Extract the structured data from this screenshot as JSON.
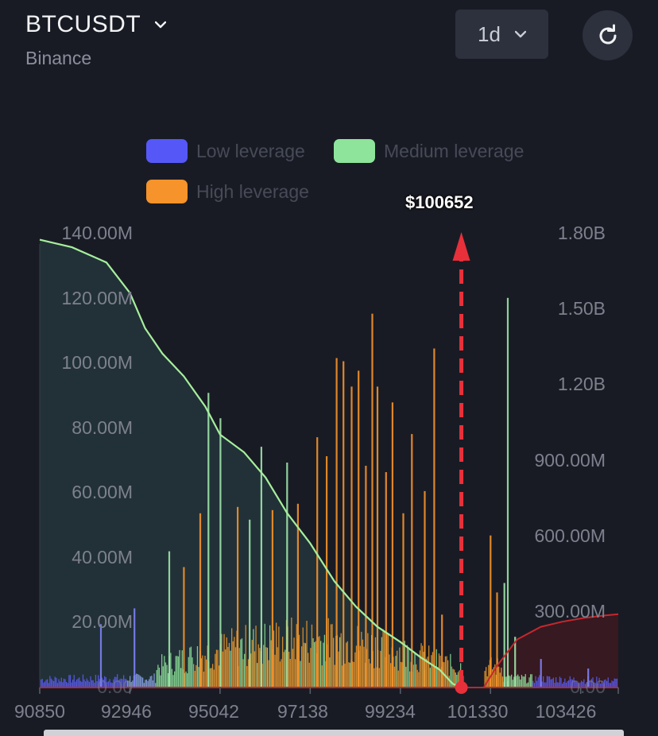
{
  "header": {
    "symbol": "BTCUSDT",
    "exchange": "Binance",
    "interval": "1d"
  },
  "icons": {
    "symbol_dropdown": "chevron-down-icon",
    "interval_dropdown": "chevron-down-icon",
    "refresh": "refresh-icon"
  },
  "colors": {
    "background": "#191b24",
    "low_leverage": "#5558f6",
    "medium_leverage": "#8ee49a",
    "high_leverage": "#f6932a",
    "cumulative_long_line": "#a6ef9c",
    "cumulative_short_line": "#c7272d",
    "current_price_marker": "#e8303a"
  },
  "chart_data": {
    "type": "bar",
    "legend": [
      {
        "name": "Low leverage",
        "color": "#5558f6"
      },
      {
        "name": "Medium leverage",
        "color": "#8ee49a"
      },
      {
        "name": "High leverage",
        "color": "#f6932a"
      }
    ],
    "legend_placement": "top",
    "current_price_label": "$100652",
    "current_price": 100652,
    "x_tick_labels": [
      "90850",
      "92946",
      "95042",
      "97138",
      "99234",
      "101330",
      "103426"
    ],
    "x_ticks": [
      90850,
      92946,
      95042,
      97138,
      99234,
      101330,
      103426
    ],
    "x_range": [
      90850,
      104300
    ],
    "y_left_tick_labels": [
      "0.00",
      "20.00M",
      "40.00M",
      "60.00M",
      "80.00M",
      "100.00M",
      "120.00M",
      "140.00M"
    ],
    "y_left_range": [
      0,
      140000000
    ],
    "y_right_tick_labels": [
      "0.00",
      "300.00M",
      "600.00M",
      "900.00M",
      "1.20B",
      "1.50B",
      "1.80B"
    ],
    "y_right_range": [
      0,
      1800000000
    ],
    "grid": false,
    "cumulative_long_liquidation": [
      {
        "x": 90850,
        "y": 1770000000
      },
      {
        "x": 91600,
        "y": 1740000000
      },
      {
        "x": 92400,
        "y": 1680000000
      },
      {
        "x": 92946,
        "y": 1560000000
      },
      {
        "x": 93300,
        "y": 1420000000
      },
      {
        "x": 93700,
        "y": 1320000000
      },
      {
        "x": 94200,
        "y": 1230000000
      },
      {
        "x": 94700,
        "y": 1110000000
      },
      {
        "x": 95042,
        "y": 1000000000
      },
      {
        "x": 95600,
        "y": 930000000
      },
      {
        "x": 96100,
        "y": 830000000
      },
      {
        "x": 96600,
        "y": 690000000
      },
      {
        "x": 97138,
        "y": 570000000
      },
      {
        "x": 97700,
        "y": 420000000
      },
      {
        "x": 98200,
        "y": 320000000
      },
      {
        "x": 98700,
        "y": 240000000
      },
      {
        "x": 99234,
        "y": 180000000
      },
      {
        "x": 99700,
        "y": 120000000
      },
      {
        "x": 100150,
        "y": 70000000
      },
      {
        "x": 100450,
        "y": 15000000
      },
      {
        "x": 100652,
        "y": 0
      }
    ],
    "cumulative_short_liquidation": [
      {
        "x": 101170,
        "y": 0
      },
      {
        "x": 101500,
        "y": 90000000
      },
      {
        "x": 101950,
        "y": 190000000
      },
      {
        "x": 102500,
        "y": 240000000
      },
      {
        "x": 103000,
        "y": 260000000
      },
      {
        "x": 103500,
        "y": 275000000
      },
      {
        "x": 104000,
        "y": 285000000
      },
      {
        "x": 104300,
        "y": 290000000
      }
    ],
    "tall_bars": [
      {
        "x": 92270,
        "y": 20000000,
        "level": "Low leverage"
      },
      {
        "x": 93050,
        "y": 25000000,
        "level": "Low leverage"
      },
      {
        "x": 93860,
        "y": 43000000,
        "level": "Medium leverage"
      },
      {
        "x": 94200,
        "y": 38000000,
        "level": "High leverage"
      },
      {
        "x": 94580,
        "y": 55000000,
        "level": "High leverage"
      },
      {
        "x": 94770,
        "y": 93000000,
        "level": "Medium leverage"
      },
      {
        "x": 95050,
        "y": 85000000,
        "level": "Medium leverage"
      },
      {
        "x": 95450,
        "y": 57000000,
        "level": "High leverage"
      },
      {
        "x": 95730,
        "y": 53000000,
        "level": "Medium leverage"
      },
      {
        "x": 96000,
        "y": 76000000,
        "level": "Medium leverage"
      },
      {
        "x": 96260,
        "y": 56000000,
        "level": "High leverage"
      },
      {
        "x": 96600,
        "y": 71000000,
        "level": "Medium leverage"
      },
      {
        "x": 96850,
        "y": 58000000,
        "level": "High leverage"
      },
      {
        "x": 97300,
        "y": 79000000,
        "level": "High leverage"
      },
      {
        "x": 97520,
        "y": 73000000,
        "level": "High leverage"
      },
      {
        "x": 97750,
        "y": 104000000,
        "level": "High leverage"
      },
      {
        "x": 97910,
        "y": 103000000,
        "level": "High leverage"
      },
      {
        "x": 98100,
        "y": 95000000,
        "level": "High leverage"
      },
      {
        "x": 98260,
        "y": 100000000,
        "level": "High leverage"
      },
      {
        "x": 98430,
        "y": 70000000,
        "level": "High leverage"
      },
      {
        "x": 98580,
        "y": 118000000,
        "level": "High leverage"
      },
      {
        "x": 98700,
        "y": 95000000,
        "level": "High leverage"
      },
      {
        "x": 98900,
        "y": 68000000,
        "level": "High leverage"
      },
      {
        "x": 99050,
        "y": 90000000,
        "level": "High leverage"
      },
      {
        "x": 99300,
        "y": 55000000,
        "level": "High leverage"
      },
      {
        "x": 99500,
        "y": 80000000,
        "level": "High leverage"
      },
      {
        "x": 99800,
        "y": 62000000,
        "level": "High leverage"
      },
      {
        "x": 100020,
        "y": 107000000,
        "level": "High leverage"
      },
      {
        "x": 100200,
        "y": 23000000,
        "level": "High leverage"
      },
      {
        "x": 101330,
        "y": 48000000,
        "level": "High leverage"
      },
      {
        "x": 101480,
        "y": 30000000,
        "level": "High leverage"
      },
      {
        "x": 101650,
        "y": 33000000,
        "level": "Medium leverage"
      },
      {
        "x": 101730,
        "y": 123000000,
        "level": "Medium leverage"
      },
      {
        "x": 101900,
        "y": 16000000,
        "level": "Medium leverage"
      },
      {
        "x": 102500,
        "y": 9000000,
        "level": "Low leverage"
      },
      {
        "x": 103600,
        "y": 6000000,
        "level": "Low leverage"
      }
    ]
  }
}
